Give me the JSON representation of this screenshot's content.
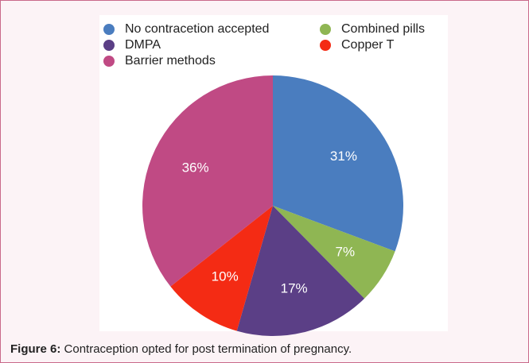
{
  "chart_data": {
    "type": "pie",
    "series": [
      {
        "name": "No contracetion accepted",
        "color": "#4a7dbf",
        "value": 31,
        "value_label": "31%"
      },
      {
        "name": "Combined pills",
        "color": "#8fb653",
        "value": 7,
        "value_label": "7%"
      },
      {
        "name": "DMPA",
        "color": "#5b3f86",
        "value": 17,
        "value_label": "17%"
      },
      {
        "name": "Copper T",
        "color": "#f42b14",
        "value": 10,
        "value_label": "10%"
      },
      {
        "name": "Barrier methods",
        "color": "#c04a84",
        "value": 36,
        "value_label": "36%"
      }
    ]
  },
  "caption": {
    "label": "Figure 6:",
    "text": "Contraception opted for post termination of pregnancy."
  }
}
